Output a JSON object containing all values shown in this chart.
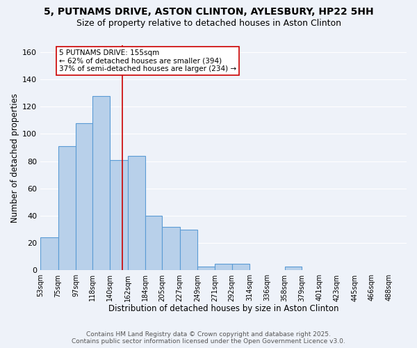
{
  "title_line1": "5, PUTNAMS DRIVE, ASTON CLINTON, AYLESBURY, HP22 5HH",
  "title_line2": "Size of property relative to detached houses in Aston Clinton",
  "xlabel": "Distribution of detached houses by size in Aston Clinton",
  "ylabel": "Number of detached properties",
  "bar_left_edges": [
    53,
    75,
    97,
    118,
    140,
    162,
    184,
    205,
    227,
    249,
    271,
    292,
    314,
    336,
    358,
    379,
    401,
    423,
    445,
    466
  ],
  "bar_widths": [
    22,
    22,
    21,
    22,
    22,
    22,
    21,
    22,
    22,
    22,
    21,
    22,
    22,
    22,
    21,
    22,
    22,
    22,
    21,
    22
  ],
  "bar_heights": [
    24,
    91,
    108,
    128,
    81,
    84,
    40,
    32,
    30,
    3,
    5,
    5,
    0,
    0,
    3,
    0,
    0,
    0,
    0,
    0
  ],
  "tick_labels": [
    "53sqm",
    "75sqm",
    "97sqm",
    "118sqm",
    "140sqm",
    "162sqm",
    "184sqm",
    "205sqm",
    "227sqm",
    "249sqm",
    "271sqm",
    "292sqm",
    "314sqm",
    "336sqm",
    "358sqm",
    "379sqm",
    "401sqm",
    "423sqm",
    "445sqm",
    "466sqm",
    "488sqm"
  ],
  "bar_color": "#b8d0ea",
  "bar_edge_color": "#5b9bd5",
  "vline_x": 155,
  "vline_color": "#cc0000",
  "annotation_text": "5 PUTNAMS DRIVE: 155sqm\n← 62% of detached houses are smaller (394)\n37% of semi-detached houses are larger (234) →",
  "annotation_box_color": "#ffffff",
  "annotation_box_edge": "#cc0000",
  "ylim": [
    0,
    165
  ],
  "xlim": [
    53,
    510
  ],
  "footer_line1": "Contains HM Land Registry data © Crown copyright and database right 2025.",
  "footer_line2": "Contains public sector information licensed under the Open Government Licence v3.0.",
  "background_color": "#eef2f9",
  "grid_color": "#ffffff",
  "title_fontsize": 10,
  "subtitle_fontsize": 9,
  "axis_label_fontsize": 8.5,
  "tick_fontsize": 7,
  "footer_fontsize": 6.5,
  "annotation_fontsize": 7.5
}
